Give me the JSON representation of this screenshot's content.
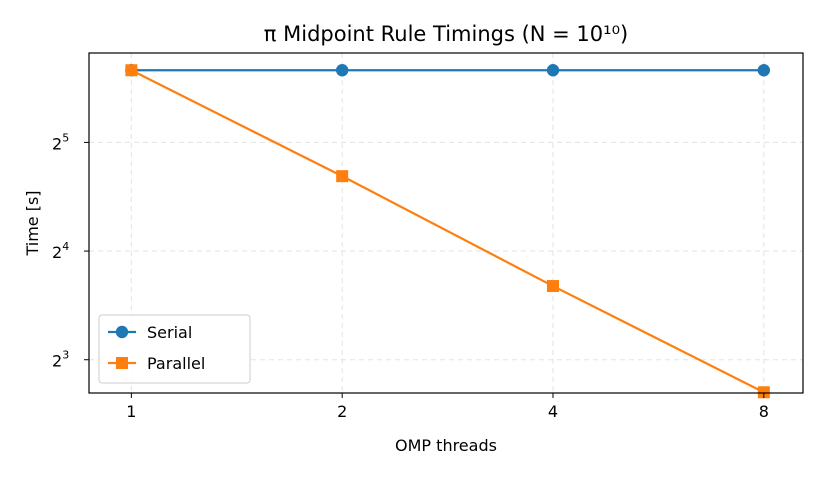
{
  "chart_data": {
    "type": "line",
    "title": "π Midpoint Rule Timings (N = 10¹⁰)",
    "xlabel": "OMP threads",
    "ylabel": "Time [s]",
    "x": [
      1,
      2,
      4,
      8
    ],
    "x_scale": "log2",
    "y_scale": "log2",
    "xlim": [
      0.87,
      9.1
    ],
    "ylim": [
      6.47,
      56.6
    ],
    "x_ticks": [
      {
        "value": 1,
        "label": "1"
      },
      {
        "value": 2,
        "label": "2"
      },
      {
        "value": 4,
        "label": "4"
      },
      {
        "value": 8,
        "label": "8"
      }
    ],
    "y_ticks": [
      {
        "value": 8,
        "base": "2",
        "exp": "3"
      },
      {
        "value": 16,
        "base": "2",
        "exp": "4"
      },
      {
        "value": 32,
        "base": "2",
        "exp": "5"
      }
    ],
    "grid": true,
    "legend_position": "lower-left",
    "series": [
      {
        "name": "Serial",
        "values": [
          50.7,
          50.7,
          50.7,
          50.7
        ],
        "color": "#1f77b4",
        "marker": "circle"
      },
      {
        "name": "Parallel",
        "values": [
          50.7,
          25.8,
          12.8,
          6.5
        ],
        "color": "#ff7f0e",
        "marker": "square"
      }
    ]
  }
}
